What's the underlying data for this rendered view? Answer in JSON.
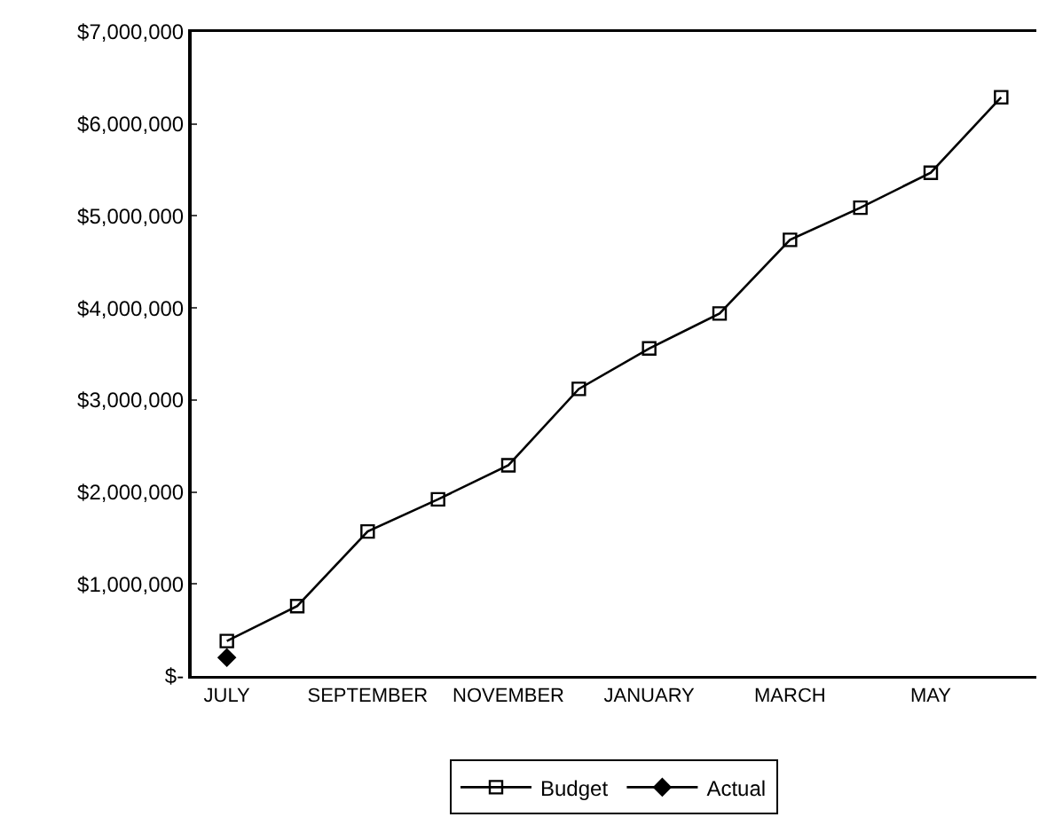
{
  "chart_data": {
    "type": "line",
    "categories": [
      "JULY",
      null,
      "SEPTEMBER",
      null,
      "NOVEMBER",
      null,
      "JANUARY",
      null,
      "MARCH",
      null,
      "MAY",
      null
    ],
    "series": [
      {
        "name": "Budget",
        "color": "#000000",
        "marker": "square",
        "values": [
          380000,
          760000,
          1570000,
          1920000,
          2290000,
          3120000,
          3560000,
          3940000,
          4740000,
          5090000,
          5470000,
          6290000
        ]
      },
      {
        "name": "Actual",
        "color": "#000000",
        "marker": "diamond",
        "values": [
          200000,
          null,
          null,
          null,
          null,
          null,
          null,
          null,
          null,
          null,
          null,
          null
        ]
      }
    ],
    "ylim": [
      0,
      7000000
    ],
    "yticks": [
      {
        "value": 0,
        "label": "$-"
      },
      {
        "value": 1000000,
        "label": "$1,000,000"
      },
      {
        "value": 2000000,
        "label": "$2,000,000"
      },
      {
        "value": 3000000,
        "label": "$3,000,000"
      },
      {
        "value": 4000000,
        "label": "$4,000,000"
      },
      {
        "value": 5000000,
        "label": "$5,000,000"
      },
      {
        "value": 6000000,
        "label": "$6,000,000"
      },
      {
        "value": 7000000,
        "label": "$7,000,000"
      }
    ],
    "grid": false,
    "legend": "bottom",
    "line_style": "solid"
  }
}
